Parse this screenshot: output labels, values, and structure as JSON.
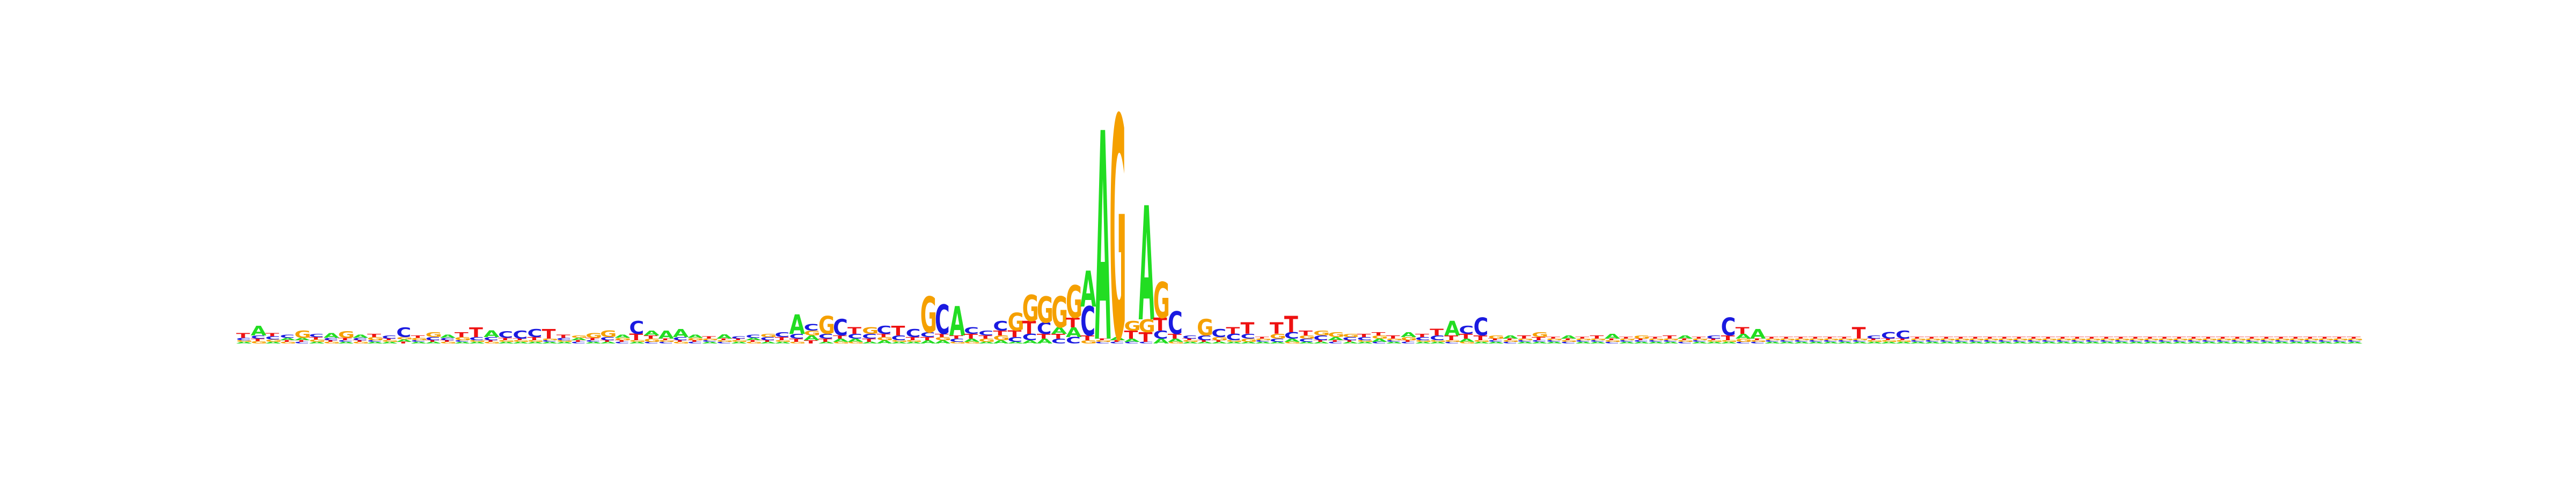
{
  "figure": {
    "kind": "sequence-logo"
  },
  "colors": {
    "A": "#22dd22",
    "C": "#1a1ae0",
    "G": "#f5a000",
    "T": "#ee1111"
  },
  "chart_data": {
    "type": "sequence_logo",
    "alphabet": [
      "A",
      "C",
      "G",
      "T"
    ],
    "title": "",
    "xlabel": "",
    "ylabel": "",
    "value_units": "bits",
    "ylim": [
      0,
      2
    ],
    "positions": [
      {
        "A": 0.01,
        "C": 0.015,
        "G": 0.01,
        "T": 0.03
      },
      {
        "A": 0.06,
        "C": 0.02,
        "G": 0.015,
        "T": 0.015
      },
      {
        "A": 0.01,
        "C": 0.02,
        "G": 0.015,
        "T": 0.02
      },
      {
        "A": 0.015,
        "C": 0.02,
        "G": 0.01,
        "T": 0.01
      },
      {
        "A": 0.015,
        "C": 0.01,
        "G": 0.045,
        "T": 0.01
      },
      {
        "A": 0.01,
        "C": 0.02,
        "G": 0.015,
        "T": 0.015
      },
      {
        "A": 0.03,
        "C": 0.015,
        "G": 0.01,
        "T": 0.01
      },
      {
        "A": 0.01,
        "C": 0.01,
        "G": 0.04,
        "T": 0.015
      },
      {
        "A": 0.02,
        "C": 0.015,
        "G": 0.01,
        "T": 0.01
      },
      {
        "A": 0.01,
        "C": 0.01,
        "G": 0.02,
        "T": 0.02
      },
      {
        "A": 0.01,
        "C": 0.02,
        "G": 0.01,
        "T": 0.01
      },
      {
        "A": 0.015,
        "C": 0.06,
        "G": 0.015,
        "T": 0.01
      },
      {
        "A": 0.01,
        "C": 0.01,
        "G": 0.015,
        "T": 0.015
      },
      {
        "A": 0.01,
        "C": 0.02,
        "G": 0.03,
        "T": 0.01
      },
      {
        "A": 0.02,
        "C": 0.015,
        "G": 0.01,
        "T": 0.01
      },
      {
        "A": 0.01,
        "C": 0.01,
        "G": 0.02,
        "T": 0.03
      },
      {
        "A": 0.01,
        "C": 0.02,
        "G": 0.01,
        "T": 0.06
      },
      {
        "A": 0.04,
        "C": 0.02,
        "G": 0.01,
        "T": 0.01
      },
      {
        "A": 0.01,
        "C": 0.04,
        "G": 0.01,
        "T": 0.015
      },
      {
        "A": 0.01,
        "C": 0.05,
        "G": 0.01,
        "T": 0.01
      },
      {
        "A": 0.01,
        "C": 0.05,
        "G": 0.01,
        "T": 0.02
      },
      {
        "A": 0.01,
        "C": 0.01,
        "G": 0.01,
        "T": 0.06
      },
      {
        "A": 0.01,
        "C": 0.015,
        "G": 0.01,
        "T": 0.02
      },
      {
        "A": 0.015,
        "C": 0.01,
        "G": 0.015,
        "T": 0.01
      },
      {
        "A": 0.01,
        "C": 0.01,
        "G": 0.03,
        "T": 0.015
      },
      {
        "A": 0.01,
        "C": 0.02,
        "G": 0.04,
        "T": 0.01
      },
      {
        "A": 0.02,
        "C": 0.01,
        "G": 0.015,
        "T": 0.01
      },
      {
        "A": 0.01,
        "C": 0.08,
        "G": 0.01,
        "T": 0.04
      },
      {
        "A": 0.03,
        "C": 0.01,
        "G": 0.02,
        "T": 0.02
      },
      {
        "A": 0.05,
        "C": 0.01,
        "G": 0.01,
        "T": 0.01
      },
      {
        "A": 0.05,
        "C": 0.02,
        "G": 0.01,
        "T": 0.01
      },
      {
        "A": 0.02,
        "C": 0.01,
        "G": 0.015,
        "T": 0.01
      },
      {
        "A": 0.01,
        "C": 0.01,
        "G": 0.01,
        "T": 0.015
      },
      {
        "A": 0.025,
        "C": 0.01,
        "G": 0.01,
        "T": 0.01
      },
      {
        "A": 0.01,
        "C": 0.015,
        "G": 0.01,
        "T": 0.01
      },
      {
        "A": 0.015,
        "C": 0.02,
        "G": 0.01,
        "T": 0.01
      },
      {
        "A": 0.01,
        "C": 0.02,
        "G": 0.02,
        "T": 0.01
      },
      {
        "A": 0.01,
        "C": 0.03,
        "G": 0.01,
        "T": 0.02
      },
      {
        "A": 0.12,
        "C": 0.03,
        "G": 0.01,
        "T": 0.02
      },
      {
        "A": 0.03,
        "C": 0.04,
        "G": 0.03,
        "T": 0.02
      },
      {
        "A": 0.01,
        "C": 0.03,
        "G": 0.11,
        "T": 0.02
      },
      {
        "A": 0.02,
        "C": 0.1,
        "G": 0.01,
        "T": 0.02
      },
      {
        "A": 0.02,
        "C": 0.03,
        "G": 0.01,
        "T": 0.04
      },
      {
        "A": 0.01,
        "C": 0.03,
        "G": 0.04,
        "T": 0.02
      },
      {
        "A": 0.02,
        "C": 0.05,
        "G": 0.02,
        "T": 0.02
      },
      {
        "A": 0.01,
        "C": 0.03,
        "G": 0.01,
        "T": 0.06
      },
      {
        "A": 0.01,
        "C": 0.05,
        "G": 0.01,
        "T": 0.02
      },
      {
        "A": 0.02,
        "C": 0.03,
        "G": 0.22,
        "T": 0.02
      },
      {
        "A": 0.02,
        "C": 0.18,
        "G": 0.02,
        "T": 0.02
      },
      {
        "A": 0.18,
        "C": 0.02,
        "G": 0.01,
        "T": 0.02
      },
      {
        "A": 0.02,
        "C": 0.04,
        "G": 0.01,
        "T": 0.03
      },
      {
        "A": 0.01,
        "C": 0.03,
        "G": 0.02,
        "T": 0.02
      },
      {
        "A": 0.02,
        "C": 0.06,
        "G": 0.03,
        "T": 0.03
      },
      {
        "A": 0.01,
        "C": 0.03,
        "G": 0.11,
        "T": 0.04
      },
      {
        "A": 0.02,
        "C": 0.04,
        "G": 0.16,
        "T": 0.08
      },
      {
        "A": 0.03,
        "C": 0.07,
        "G": 0.16,
        "T": 0.03
      },
      {
        "A": 0.04,
        "C": 0.03,
        "G": 0.19,
        "T": 0.03
      },
      {
        "A": 0.06,
        "C": 0.04,
        "G": 0.2,
        "T": 0.06
      },
      {
        "A": 0.22,
        "C": 0.18,
        "G": 0.02,
        "T": 0.03
      },
      {
        "A": 1.28,
        "C": 0.01,
        "G": 0.01,
        "T": 0.01
      },
      {
        "A": 0.02,
        "C": 0.01,
        "G": 1.36,
        "T": 0.01
      },
      {
        "A": 0.02,
        "C": 0.01,
        "G": 0.06,
        "T": 0.05
      },
      {
        "A": 0.7,
        "C": 0.01,
        "G": 0.08,
        "T": 0.06
      },
      {
        "A": 0.03,
        "C": 0.05,
        "G": 0.22,
        "T": 0.08
      },
      {
        "A": 0.02,
        "C": 0.14,
        "G": 0.01,
        "T": 0.03
      },
      {
        "A": 0.01,
        "C": 0.02,
        "G": 0.01,
        "T": 0.01
      },
      {
        "A": 0.01,
        "C": 0.03,
        "G": 0.1,
        "T": 0.01
      },
      {
        "A": 0.01,
        "C": 0.05,
        "G": 0.02,
        "T": 0.01
      },
      {
        "A": 0.01,
        "C": 0.04,
        "G": 0.01,
        "T": 0.04
      },
      {
        "A": 0.01,
        "C": 0.03,
        "G": 0.02,
        "T": 0.07
      },
      {
        "A": 0.01,
        "C": 0.01,
        "G": 0.01,
        "T": 0.01
      },
      {
        "A": 0.01,
        "C": 0.02,
        "G": 0.03,
        "T": 0.07
      },
      {
        "A": 0.02,
        "C": 0.04,
        "G": 0.01,
        "T": 0.1
      },
      {
        "A": 0.01,
        "C": 0.02,
        "G": 0.02,
        "T": 0.03
      },
      {
        "A": 0.01,
        "C": 0.03,
        "G": 0.03,
        "T": 0.01
      },
      {
        "A": 0.02,
        "C": 0.01,
        "G": 0.03,
        "T": 0.01
      },
      {
        "A": 0.01,
        "C": 0.02,
        "G": 0.02,
        "T": 0.01
      },
      {
        "A": 0.01,
        "C": 0.02,
        "G": 0.01,
        "T": 0.02
      },
      {
        "A": 0.02,
        "C": 0.01,
        "G": 0.02,
        "T": 0.02
      },
      {
        "A": 0.01,
        "C": 0.01,
        "G": 0.01,
        "T": 0.02
      },
      {
        "A": 0.03,
        "C": 0.01,
        "G": 0.02,
        "T": 0.01
      },
      {
        "A": 0.01,
        "C": 0.02,
        "G": 0.01,
        "T": 0.02
      },
      {
        "A": 0.01,
        "C": 0.03,
        "G": 0.01,
        "T": 0.04
      },
      {
        "A": 0.09,
        "C": 0.01,
        "G": 0.01,
        "T": 0.03
      },
      {
        "A": 0.02,
        "C": 0.05,
        "G": 0.01,
        "T": 0.03
      },
      {
        "A": 0.01,
        "C": 0.11,
        "G": 0.01,
        "T": 0.03
      },
      {
        "A": 0.01,
        "C": 0.01,
        "G": 0.02,
        "T": 0.01
      },
      {
        "A": 0.02,
        "C": 0.01,
        "G": 0.01,
        "T": 0.01
      },
      {
        "A": 0.01,
        "C": 0.01,
        "G": 0.01,
        "T": 0.02
      },
      {
        "A": 0.01,
        "C": 0.01,
        "G": 0.03,
        "T": 0.02
      },
      {
        "A": 0.01,
        "C": 0.01,
        "G": 0.01,
        "T": 0.01
      },
      {
        "A": 0.02,
        "C": 0.01,
        "G": 0.01,
        "T": 0.01
      },
      {
        "A": 0.01,
        "C": 0.01,
        "G": 0.01,
        "T": 0.01
      },
      {
        "A": 0.01,
        "C": 0.01,
        "G": 0.01,
        "T": 0.02
      },
      {
        "A": 0.03,
        "C": 0.01,
        "G": 0.01,
        "T": 0.01
      },
      {
        "A": 0.01,
        "C": 0.01,
        "G": 0.01,
        "T": 0.01
      },
      {
        "A": 0.01,
        "C": 0.01,
        "G": 0.02,
        "T": 0.01
      },
      {
        "A": 0.01,
        "C": 0.01,
        "G": 0.01,
        "T": 0.01
      },
      {
        "A": 0.01,
        "C": 0.01,
        "G": 0.01,
        "T": 0.02
      },
      {
        "A": 0.02,
        "C": 0.01,
        "G": 0.01,
        "T": 0.01
      },
      {
        "A": 0.01,
        "C": 0.01,
        "G": 0.01,
        "T": 0.01
      },
      {
        "A": 0.01,
        "C": 0.02,
        "G": 0.01,
        "T": 0.01
      },
      {
        "A": 0.01,
        "C": 0.11,
        "G": 0.01,
        "T": 0.03
      },
      {
        "A": 0.03,
        "C": 0.01,
        "G": 0.02,
        "T": 0.04
      },
      {
        "A": 0.06,
        "C": 0.01,
        "G": 0.01,
        "T": 0.01
      },
      {
        "A": 0.01,
        "C": 0.01,
        "G": 0.01,
        "T": 0.01
      },
      {
        "A": 0.01,
        "C": 0.01,
        "G": 0.01,
        "T": 0.01
      },
      {
        "A": 0.01,
        "C": 0.01,
        "G": 0.01,
        "T": 0.01
      },
      {
        "A": 0.01,
        "C": 0.01,
        "G": 0.01,
        "T": 0.01
      },
      {
        "A": 0.01,
        "C": 0.01,
        "G": 0.01,
        "T": 0.01
      },
      {
        "A": 0.01,
        "C": 0.01,
        "G": 0.01,
        "T": 0.01
      },
      {
        "A": 0.01,
        "C": 0.01,
        "G": 0.01,
        "T": 0.07
      },
      {
        "A": 0.01,
        "C": 0.02,
        "G": 0.01,
        "T": 0.01
      },
      {
        "A": 0.01,
        "C": 0.04,
        "G": 0.01,
        "T": 0.01
      },
      {
        "A": 0.01,
        "C": 0.05,
        "G": 0.01,
        "T": 0.01
      },
      {
        "A": 0.01,
        "C": 0.01,
        "G": 0.01,
        "T": 0.01
      },
      {
        "A": 0.01,
        "C": 0.01,
        "G": 0.01,
        "T": 0.01
      },
      {
        "A": 0.01,
        "C": 0.01,
        "G": 0.01,
        "T": 0.01
      },
      {
        "A": 0.01,
        "C": 0.01,
        "G": 0.01,
        "T": 0.01
      },
      {
        "A": 0.01,
        "C": 0.01,
        "G": 0.01,
        "T": 0.01
      },
      {
        "A": 0.01,
        "C": 0.01,
        "G": 0.01,
        "T": 0.01
      },
      {
        "A": 0.01,
        "C": 0.01,
        "G": 0.01,
        "T": 0.01
      },
      {
        "A": 0.01,
        "C": 0.01,
        "G": 0.01,
        "T": 0.01
      },
      {
        "A": 0.01,
        "C": 0.01,
        "G": 0.01,
        "T": 0.01
      },
      {
        "A": 0.01,
        "C": 0.01,
        "G": 0.01,
        "T": 0.01
      },
      {
        "A": 0.01,
        "C": 0.01,
        "G": 0.01,
        "T": 0.01
      },
      {
        "A": 0.01,
        "C": 0.01,
        "G": 0.01,
        "T": 0.01
      },
      {
        "A": 0.01,
        "C": 0.01,
        "G": 0.01,
        "T": 0.01
      },
      {
        "A": 0.01,
        "C": 0.01,
        "G": 0.01,
        "T": 0.01
      },
      {
        "A": 0.01,
        "C": 0.01,
        "G": 0.01,
        "T": 0.01
      },
      {
        "A": 0.01,
        "C": 0.01,
        "G": 0.01,
        "T": 0.01
      },
      {
        "A": 0.01,
        "C": 0.01,
        "G": 0.01,
        "T": 0.01
      },
      {
        "A": 0.01,
        "C": 0.01,
        "G": 0.01,
        "T": 0.01
      },
      {
        "A": 0.01,
        "C": 0.01,
        "G": 0.01,
        "T": 0.01
      },
      {
        "A": 0.01,
        "C": 0.01,
        "G": 0.01,
        "T": 0.01
      },
      {
        "A": 0.01,
        "C": 0.01,
        "G": 0.01,
        "T": 0.01
      },
      {
        "A": 0.01,
        "C": 0.01,
        "G": 0.01,
        "T": 0.01
      },
      {
        "A": 0.01,
        "C": 0.01,
        "G": 0.01,
        "T": 0.01
      },
      {
        "A": 0.01,
        "C": 0.01,
        "G": 0.01,
        "T": 0.01
      },
      {
        "A": 0.01,
        "C": 0.01,
        "G": 0.01,
        "T": 0.01
      },
      {
        "A": 0.01,
        "C": 0.01,
        "G": 0.01,
        "T": 0.01
      },
      {
        "A": 0.01,
        "C": 0.01,
        "G": 0.01,
        "T": 0.01
      },
      {
        "A": 0.01,
        "C": 0.01,
        "G": 0.01,
        "T": 0.01
      },
      {
        "A": 0.01,
        "C": 0.01,
        "G": 0.01,
        "T": 0.01
      },
      {
        "A": 0.01,
        "C": 0.01,
        "G": 0.01,
        "T": 0.01
      },
      {
        "A": 0.01,
        "C": 0.01,
        "G": 0.01,
        "T": 0.01
      }
    ]
  }
}
